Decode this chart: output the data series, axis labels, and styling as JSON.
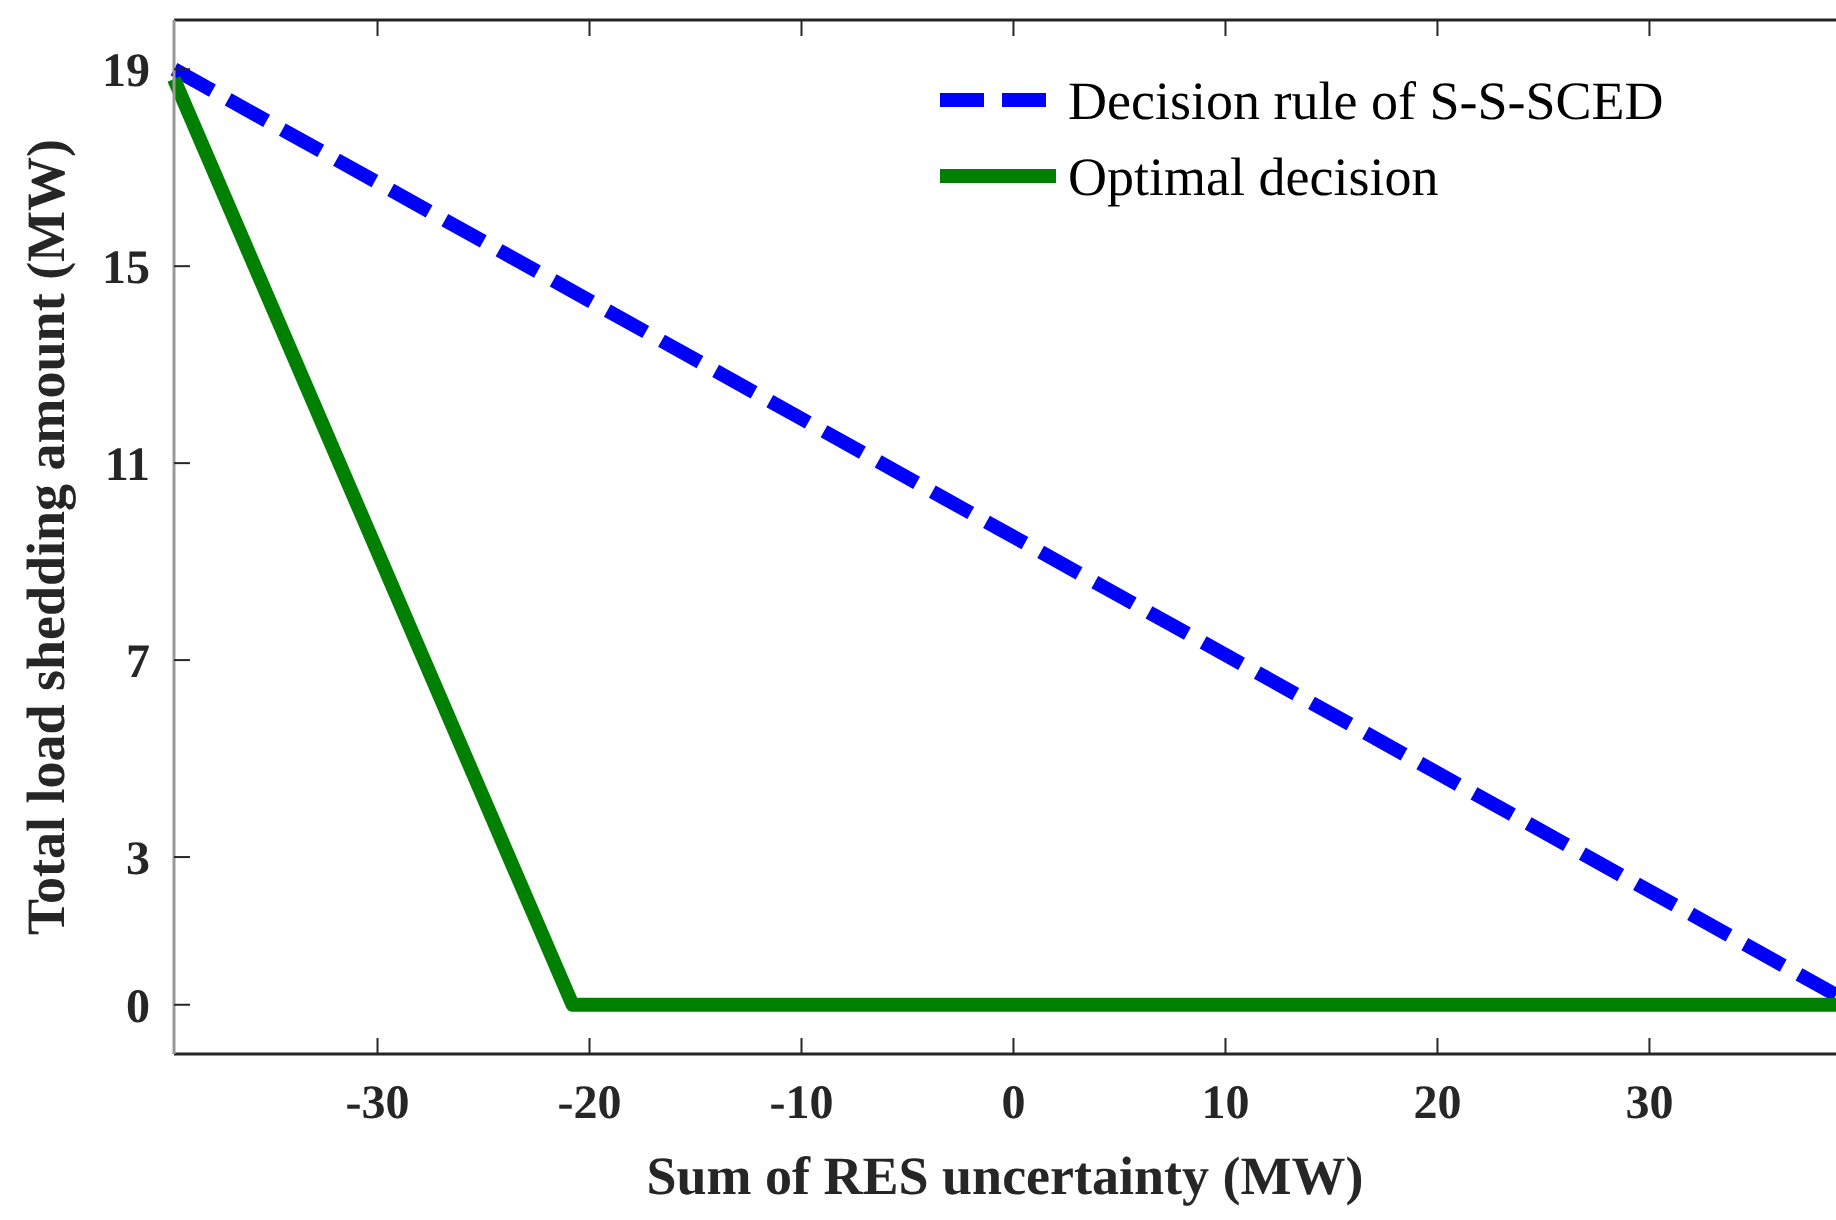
{
  "chart_data": {
    "type": "line",
    "xlabel": "Sum of RES uncertainty (MW)",
    "ylabel": "Total load shedding amount (MW)",
    "xlim": [
      -39.6,
      38.8
    ],
    "ylim": [
      -1,
      20
    ],
    "xticks": [
      -30,
      -20,
      -10,
      0,
      10,
      20,
      30
    ],
    "yticks": [
      0,
      3,
      7,
      11,
      15,
      19
    ],
    "legend": "top right",
    "grid": false,
    "series": [
      {
        "name": "Decision rule of S-S-SCED",
        "color": "#0000ff",
        "line_style": "dashed",
        "x": [
          -39.6,
          38.8
        ],
        "values": [
          19,
          0.2
        ]
      },
      {
        "name": "Optimal decision",
        "color": "#008000",
        "line_style": "solid",
        "x": [
          -39.6,
          -20.8,
          38.8
        ],
        "values": [
          18.8,
          0,
          0
        ]
      }
    ]
  }
}
